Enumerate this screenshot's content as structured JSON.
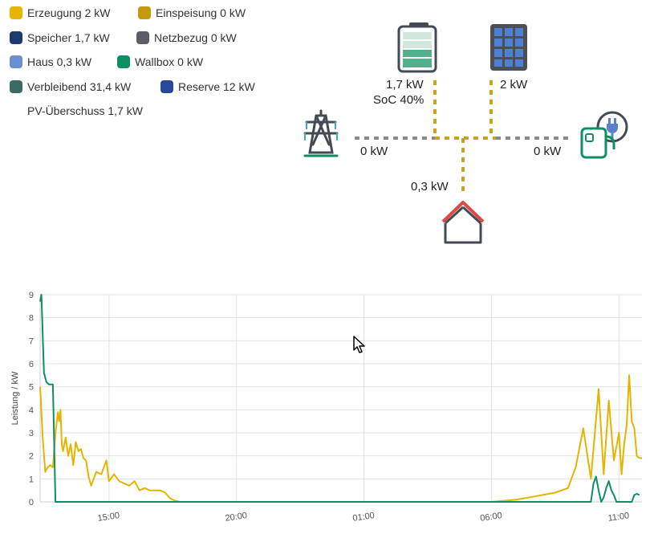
{
  "legend": [
    {
      "label": "Erzeugung 2 kW",
      "color": "#e6b400",
      "filled": true
    },
    {
      "label": "Einspeisung 0 kW",
      "color": "#c49a0c",
      "filled": true
    },
    {
      "label": "Speicher 1,7 kW",
      "color": "#1f3a6e",
      "filled": true
    },
    {
      "label": "Netzbezug 0 kW",
      "color": "#5a5d66",
      "filled": true
    },
    {
      "label": "Haus 0,3 kW",
      "color": "#6b8fcf",
      "filled": true
    },
    {
      "label": "Wallbox 0 kW",
      "color": "#0d8f63",
      "filled": true
    },
    {
      "label": "Verbleibend 31,4 kW",
      "color": "#3c6b66",
      "filled": true
    },
    {
      "label": "Reserve 12 kW",
      "color": "#26489b",
      "filled": true
    },
    {
      "label": "PV-Überschuss 1,7 kW",
      "color": "#ffffff",
      "filled": false
    }
  ],
  "flow": {
    "battery": {
      "power": "1,7 kW",
      "soc": "SoC 40%",
      "icon": "battery-icon"
    },
    "solar": {
      "power": "2 kW",
      "icon": "solar-panel-icon"
    },
    "grid": {
      "power": "0 kW",
      "icon": "power-pylon-icon"
    },
    "wallbox": {
      "power": "0 kW",
      "icon": "wallbox-icon"
    },
    "house": {
      "power": "0,3 kW",
      "icon": "house-icon"
    },
    "colors": {
      "active": "#c9a227",
      "inactive": "#8a8a8a"
    }
  },
  "chart_data": {
    "type": "line",
    "ylabel": "Leistung / kW",
    "ylim": [
      0,
      9
    ],
    "yticks": [
      "0",
      "1",
      "2",
      "3",
      "4",
      "5",
      "6",
      "7",
      "8",
      "9"
    ],
    "xticks": [
      "15:00",
      "20:00",
      "01:00",
      "06:00",
      "11:00"
    ],
    "xtick_hours": [
      15,
      20,
      25,
      30,
      35
    ],
    "xlim": [
      12.3,
      35.9
    ],
    "grid": true,
    "series": [
      {
        "color": "#e6b400",
        "x": [
          12.3,
          12.4,
          12.5,
          12.6,
          12.7,
          12.8,
          12.9,
          13.0,
          13.05,
          13.1,
          13.15,
          13.2,
          13.3,
          13.4,
          13.5,
          13.6,
          13.7,
          13.8,
          13.9,
          14.0,
          14.1,
          14.2,
          14.3,
          14.5,
          14.7,
          14.8,
          14.9,
          15.0,
          15.2,
          15.4,
          15.6,
          15.8,
          16.0,
          16.2,
          16.4,
          16.6,
          16.8,
          17.0,
          17.2,
          17.4,
          17.6,
          17.8,
          18.0,
          18.2,
          18.3,
          18.5,
          18.6,
          20.0,
          25.0,
          30.0,
          31.0,
          31.5,
          32.0,
          32.5,
          33.0,
          33.3,
          33.6,
          33.9,
          34.2,
          34.4,
          34.6,
          34.8,
          35.0,
          35.1,
          35.2,
          35.3,
          35.4,
          35.5,
          35.6,
          35.7,
          35.8,
          35.9
        ],
        "values": [
          5.0,
          2.8,
          1.3,
          1.5,
          1.6,
          1.5,
          3.0,
          3.9,
          3.5,
          4.0,
          2.5,
          2.2,
          2.8,
          2.0,
          2.5,
          1.6,
          2.6,
          2.2,
          2.3,
          1.9,
          1.8,
          1.1,
          0.7,
          1.3,
          1.2,
          1.5,
          1.8,
          0.9,
          1.2,
          0.9,
          0.8,
          0.7,
          0.9,
          0.5,
          0.6,
          0.5,
          0.5,
          0.5,
          0.4,
          0.15,
          0.05,
          0.0,
          0.0,
          0.0,
          0.0,
          0.0,
          0.0,
          0.0,
          0.0,
          0.0,
          0.1,
          0.2,
          0.3,
          0.4,
          0.6,
          1.5,
          3.2,
          1.0,
          4.9,
          1.2,
          4.4,
          1.8,
          3.0,
          1.2,
          2.5,
          3.3,
          5.5,
          3.5,
          3.2,
          2.0,
          1.9,
          1.9
        ]
      },
      {
        "color": "#0d8f63",
        "x": [
          12.3,
          12.35,
          12.45,
          12.55,
          12.65,
          12.8,
          12.9,
          20.0,
          25.0,
          30.0,
          33.8,
          33.9,
          34.0,
          34.1,
          34.2,
          34.3,
          34.4,
          34.5,
          34.6,
          34.7,
          34.8,
          34.9,
          35.0,
          35.1,
          35.3,
          35.5,
          35.6,
          35.7,
          35.8
        ],
        "values": [
          8.7,
          9.0,
          5.6,
          5.2,
          5.1,
          5.1,
          0.0,
          0.0,
          0.0,
          0.0,
          0.0,
          0.0,
          0.8,
          1.1,
          0.5,
          0.0,
          0.2,
          0.6,
          0.9,
          0.5,
          0.3,
          0.0,
          0.0,
          0.0,
          0.0,
          0.0,
          0.3,
          0.35,
          0.3
        ]
      }
    ]
  }
}
